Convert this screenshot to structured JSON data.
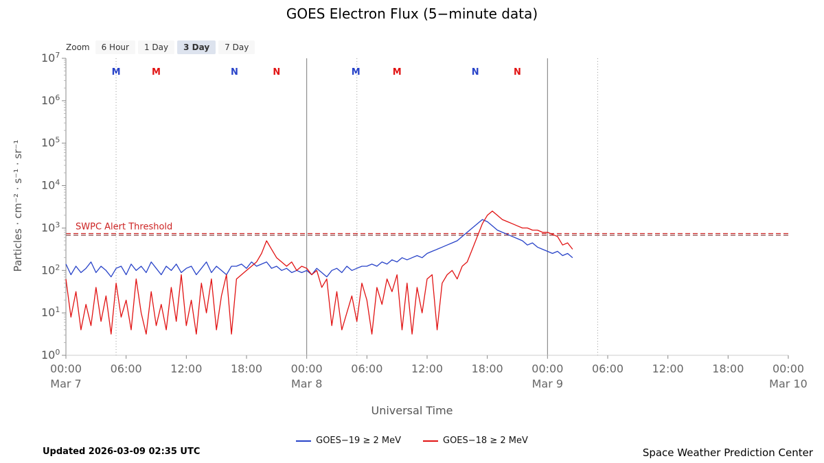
{
  "title": "GOES Electron Flux (5−minute data)",
  "zoom_controls": {
    "label": "Zoom",
    "options": [
      {
        "label": "6 Hour",
        "active": false
      },
      {
        "label": "1 Day",
        "active": false
      },
      {
        "label": "3 Day",
        "active": true
      },
      {
        "label": "7 Day",
        "active": false
      }
    ]
  },
  "footer": {
    "updated": "Updated 2026-03-09 02:35 UTC",
    "credit": "Space Weather Prediction Center"
  },
  "chart_data": {
    "type": "line",
    "title": "GOES Electron Flux (5−minute data)",
    "xlabel": "Universal Time",
    "ylabel": "Particles · cm⁻² · s⁻¹ · sr⁻¹",
    "x_axis": {
      "min_hours": 0,
      "max_hours": 72,
      "tick_interval_hours": 6,
      "day_labels": [
        {
          "hour": 0,
          "label": "Mar 7"
        },
        {
          "hour": 24,
          "label": "Mar 8"
        },
        {
          "hour": 48,
          "label": "Mar 9"
        },
        {
          "hour": 72,
          "label": "Mar 10"
        }
      ]
    },
    "y_axis": {
      "scale": "log",
      "min_exp": 0,
      "max_exp": 7
    },
    "threshold": {
      "label": "SWPC Alert Threshold",
      "label_color": "#cc2222",
      "value_pfu": 1000,
      "lines": [
        {
          "color": "#cc2222",
          "log10": 2.87
        },
        {
          "color": "#7a2f2f",
          "log10": 2.83
        }
      ]
    },
    "day_boundary_lines_hours": [
      24,
      48
    ],
    "dotted_lines_hours": [
      5,
      29,
      53
    ],
    "top_markers": [
      {
        "hour": 5,
        "label": "M",
        "color": "#2742c8"
      },
      {
        "hour": 9,
        "label": "M",
        "color": "#e11212"
      },
      {
        "hour": 16.8,
        "label": "N",
        "color": "#2742c8"
      },
      {
        "hour": 21,
        "label": "N",
        "color": "#e11212"
      },
      {
        "hour": 28.9,
        "label": "M",
        "color": "#2742c8"
      },
      {
        "hour": 33,
        "label": "M",
        "color": "#e11212"
      },
      {
        "hour": 40.8,
        "label": "N",
        "color": "#2742c8"
      },
      {
        "hour": 45,
        "label": "N",
        "color": "#e11212"
      }
    ],
    "legend_position": "bottom",
    "series": [
      {
        "name": "GOES−19 ≥ 2 MeV",
        "color": "#2742c8",
        "x_start_hours": 0,
        "x_step_hours": 0.5,
        "log10_values": [
          2.15,
          1.9,
          2.1,
          1.95,
          2.05,
          2.2,
          1.95,
          2.1,
          2.0,
          1.85,
          2.05,
          2.1,
          1.9,
          2.15,
          2.0,
          2.1,
          1.95,
          2.2,
          2.05,
          1.9,
          2.1,
          2.0,
          2.15,
          1.95,
          2.05,
          2.1,
          1.9,
          2.05,
          2.2,
          1.95,
          2.1,
          2.0,
          1.9,
          2.1,
          2.1,
          2.15,
          2.05,
          2.2,
          2.1,
          2.15,
          2.2,
          2.05,
          2.1,
          2.0,
          2.05,
          1.95,
          2.0,
          1.95,
          2.0,
          1.9,
          2.05,
          1.95,
          1.85,
          2.0,
          2.05,
          1.95,
          2.1,
          2.0,
          2.05,
          2.1,
          2.1,
          2.15,
          2.1,
          2.2,
          2.15,
          2.25,
          2.2,
          2.3,
          2.25,
          2.3,
          2.35,
          2.3,
          2.4,
          2.45,
          2.5,
          2.55,
          2.6,
          2.65,
          2.7,
          2.8,
          2.9,
          3.0,
          3.1,
          3.2,
          3.15,
          3.05,
          2.95,
          2.9,
          2.85,
          2.8,
          2.75,
          2.7,
          2.6,
          2.65,
          2.55,
          2.5,
          2.45,
          2.4,
          2.45,
          2.35,
          2.4,
          2.3
        ]
      },
      {
        "name": "GOES−18 ≥ 2 MeV",
        "color": "#e11212",
        "x_start_hours": 0,
        "x_step_hours": 0.5,
        "log10_values": [
          1.8,
          0.9,
          1.5,
          0.6,
          1.2,
          0.7,
          1.6,
          0.8,
          1.4,
          0.5,
          1.7,
          0.9,
          1.3,
          0.6,
          1.8,
          1.0,
          0.5,
          1.5,
          0.7,
          1.2,
          0.6,
          1.6,
          0.8,
          1.9,
          0.7,
          1.3,
          0.5,
          1.7,
          1.0,
          1.8,
          0.6,
          1.4,
          1.9,
          0.5,
          1.8,
          1.9,
          2.0,
          2.1,
          2.2,
          2.4,
          2.7,
          2.5,
          2.3,
          2.2,
          2.1,
          2.2,
          2.0,
          2.1,
          2.05,
          1.9,
          2.0,
          1.6,
          1.8,
          0.7,
          1.5,
          0.6,
          1.0,
          1.4,
          0.8,
          1.7,
          1.3,
          0.5,
          1.6,
          1.2,
          1.8,
          1.5,
          1.9,
          0.6,
          1.7,
          0.5,
          1.6,
          1.0,
          1.8,
          1.9,
          0.6,
          1.7,
          1.9,
          2.0,
          1.8,
          2.1,
          2.2,
          2.5,
          2.8,
          3.1,
          3.3,
          3.4,
          3.3,
          3.2,
          3.15,
          3.1,
          3.05,
          3.0,
          3.0,
          2.95,
          2.95,
          2.9,
          2.9,
          2.85,
          2.8,
          2.6,
          2.65,
          2.5
        ]
      }
    ]
  }
}
